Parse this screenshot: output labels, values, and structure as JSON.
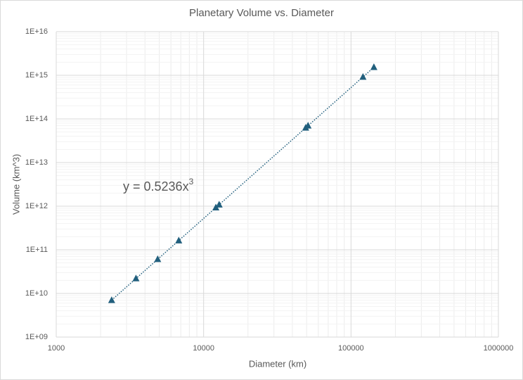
{
  "chart_data": {
    "type": "scatter",
    "title": "Planetary Volume vs. Diameter",
    "x_label": "Diameter (km)",
    "y_label": "Volume (km^3)",
    "x_scale": "log",
    "y_scale": "log",
    "xlim": [
      1000,
      1000000
    ],
    "ylim": [
      1000000000,
      10000000000000000
    ],
    "xticks": [
      1000,
      10000,
      100000,
      1000000
    ],
    "yticks": [
      {
        "value": 1000000000,
        "label": "1E+09"
      },
      {
        "value": 10000000000,
        "label": "1E+10"
      },
      {
        "value": 100000000000,
        "label": "1E+11"
      },
      {
        "value": 1000000000000,
        "label": "1E+12"
      },
      {
        "value": 10000000000000,
        "label": "1E+13"
      },
      {
        "value": 100000000000000,
        "label": "1E+14"
      },
      {
        "value": 1000000000000000,
        "label": "1E+15"
      },
      {
        "value": 10000000000000000,
        "label": "1E+16"
      }
    ],
    "grid": true,
    "series": [
      {
        "color": "#215f7d",
        "x": [
          2377,
          3475,
          4879,
          6779,
          12104,
          12742,
          49244,
          51118,
          120536,
          142984
        ],
        "values": [
          7000000000,
          22000000000,
          60800000000,
          163000000000,
          928000000000,
          1083000000000,
          62500000000000,
          69900000000000,
          917000000000000,
          1530000000000000
        ]
      }
    ],
    "trendline": {
      "label": "y = 0.5236x",
      "label_superscript": "3",
      "coefficient": 0.5236,
      "exponent": 3,
      "color": "#215f7d"
    }
  }
}
